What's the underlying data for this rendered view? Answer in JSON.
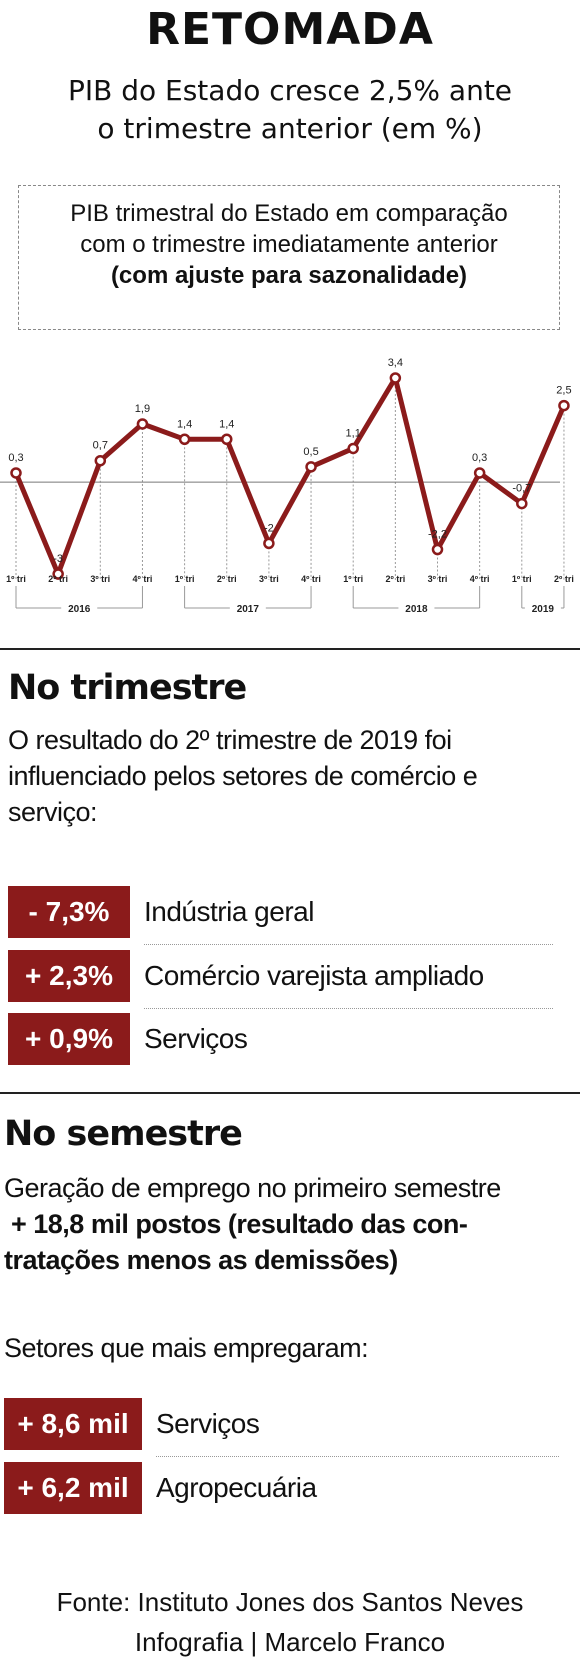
{
  "header": {
    "title": "RETOMADA",
    "subtitle_line1": "PIB do Estado cresce 2,5% ante",
    "subtitle_line2": "o trimestre anterior (em %)"
  },
  "note": {
    "line1": "PIB trimestral do Estado em comparação",
    "line2": "com o trimestre imediatamente  anterior",
    "line3": "(com ajuste para sazonalidade)"
  },
  "chart_data": {
    "type": "line",
    "series": [
      {
        "values": [
          0.3,
          -3,
          0.7,
          1.9,
          1.4,
          1.4,
          -2,
          0.5,
          1.1,
          3.4,
          -2.2,
          0.3,
          -0.7,
          2.5
        ],
        "labels": [
          "0,3",
          "-3",
          "0,7",
          "1,9",
          "1,4",
          "1,4",
          "-2",
          "0,5",
          "1,1",
          "3,4",
          "-2,2",
          "0,3",
          "-0,7",
          "2,5"
        ]
      }
    ],
    "categories": [
      "1º tri",
      "2º tri",
      "3º tri",
      "4º tri",
      "1º tri",
      "2º tri",
      "3º tri",
      "4º tri",
      "1º tri",
      "2º tri",
      "3º tri",
      "4º tri",
      "1º tri",
      "2º tri"
    ],
    "years": [
      {
        "label": "2016",
        "from": 0,
        "to": 3
      },
      {
        "label": "2017",
        "from": 4,
        "to": 7
      },
      {
        "label": "2018",
        "from": 8,
        "to": 11
      },
      {
        "label": "2019",
        "from": 12,
        "to": 13
      }
    ],
    "ylim": [
      -3,
      3.4
    ],
    "baseline": 0,
    "line_color": "#8b1b1b"
  },
  "trimestre": {
    "title": "No trimestre",
    "text_line1": "O resultado do 2º trimestre de 2019 foi",
    "text_line2": "influenciado pelos setores de comércio e",
    "text_line3": "serviço:",
    "items": [
      {
        "value": "- 7,3%",
        "label": "Indústria geral"
      },
      {
        "value": "+ 2,3%",
        "label": "Comércio varejista ampliado"
      },
      {
        "value": "+ 0,9%",
        "label": "Serviços"
      }
    ]
  },
  "semestre": {
    "title": "No semestre",
    "text_line1": "Geração de emprego no primeiro semestre",
    "text_line2": " + 18,8 mil postos (resultado das con-",
    "text_line3": "tratações menos as demissões)",
    "subtitle": "Setores que mais empregaram:",
    "items": [
      {
        "value": "+ 8,6 mil",
        "label": "Serviços"
      },
      {
        "value": "+ 6,2 mil",
        "label": "Agropecuária"
      }
    ]
  },
  "footer": {
    "source": "Fonte: Instituto Jones dos Santos Neves",
    "credit": "Infografia | Marcelo Franco"
  },
  "colors": {
    "accent": "#8b1b1b"
  }
}
